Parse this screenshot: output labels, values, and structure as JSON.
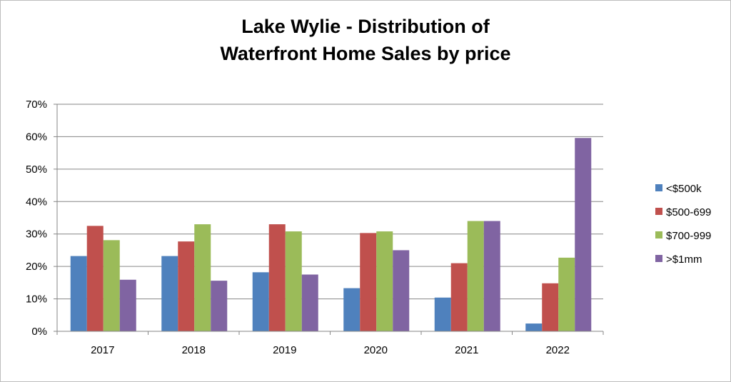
{
  "chart_data": {
    "type": "bar",
    "title_line1": "Lake Wylie - Distribution of",
    "title_line2": "Waterfront Home Sales by price",
    "categories": [
      "2017",
      "2018",
      "2019",
      "2020",
      "2021",
      "2022"
    ],
    "series": [
      {
        "name": "<$500k",
        "color": "#4f81bd",
        "values": [
          23.2,
          23.2,
          18.2,
          13.3,
          10.4,
          2.4
        ]
      },
      {
        "name": "$500-699",
        "color": "#c0504d",
        "values": [
          32.5,
          27.7,
          33.0,
          30.3,
          21.0,
          14.8
        ]
      },
      {
        "name": "$700-999",
        "color": "#9bbb59",
        "values": [
          28.1,
          33.0,
          30.8,
          30.8,
          34.0,
          22.7
        ]
      },
      {
        "name": ">$1mm",
        "color": "#8064a2",
        "values": [
          15.9,
          15.6,
          17.5,
          25.0,
          34.0,
          59.6
        ]
      }
    ],
    "ylim": [
      0,
      70
    ],
    "yticks": [
      "0%",
      "10%",
      "20%",
      "30%",
      "40%",
      "50%",
      "60%",
      "70%"
    ],
    "grid": true,
    "legend_position": "right"
  }
}
